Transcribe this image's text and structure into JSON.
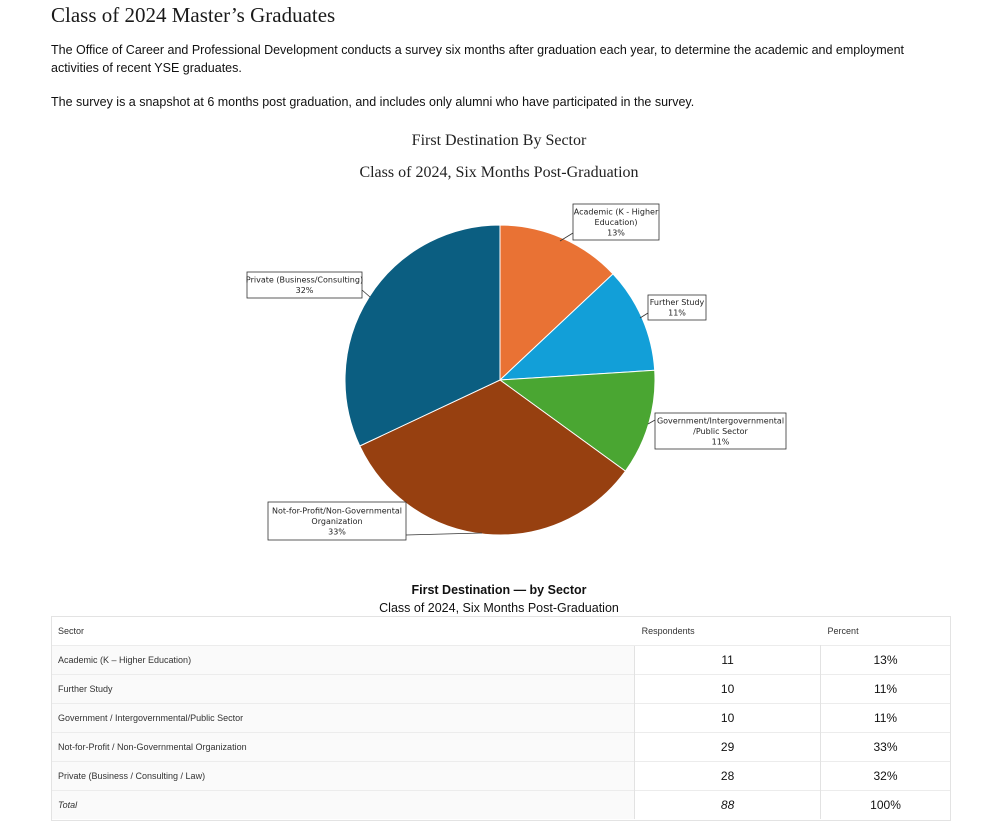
{
  "page": {
    "title": "Class of 2024 Master’s Graduates",
    "intro": "The Office of Career and Professional Development conducts a survey six months after graduation each year, to determine the academic and employment activities of recent YSE graduates.",
    "intro2": "The survey is a snapshot at 6 months post graduation, and includes only alumni who have participated in the survey."
  },
  "chart_data": {
    "type": "pie",
    "title": "First Destination By Sector",
    "subtitle": "Class of 2024, Six Months Post-Graduation",
    "slices": [
      {
        "label": [
          "Academic (K - Higher",
          "Education)"
        ],
        "value": 13,
        "percent_label": "13%",
        "color": "#e97234"
      },
      {
        "label": [
          "Further Study"
        ],
        "value": 11,
        "percent_label": "11%",
        "color": "#129fd8"
      },
      {
        "label": [
          "Government/Intergovernmental",
          "/Public Sector"
        ],
        "value": 11,
        "percent_label": "11%",
        "color": "#4aa632"
      },
      {
        "label": [
          "Not-for-Profit/Non-Governmental",
          "Organization"
        ],
        "value": 33,
        "percent_label": "33%",
        "color": "#974010"
      },
      {
        "label": [
          "Private (Business/Consulting)"
        ],
        "value": 32,
        "percent_label": "32%",
        "color": "#0b5e81"
      }
    ]
  },
  "table": {
    "title": "First Destination — by Sector",
    "subtitle": "Class of 2024, Six Months Post-Graduation",
    "headers": [
      "Sector",
      "Respondents",
      "Percent"
    ],
    "rows": [
      {
        "sector": "Academic (K – Higher Education)",
        "respondents": "11",
        "percent": "13%"
      },
      {
        "sector": "Further Study",
        "respondents": "10",
        "percent": "11%"
      },
      {
        "sector": "Government / Intergovernmental/Public Sector",
        "respondents": "10",
        "percent": "11%"
      },
      {
        "sector": "Not-for-Profit / Non-Governmental Organization",
        "respondents": "29",
        "percent": "33%"
      },
      {
        "sector": "Private (Business / Consulting / Law)",
        "respondents": "28",
        "percent": "32%"
      }
    ],
    "total": {
      "sector": "Total",
      "respondents": "88",
      "percent": "100%"
    }
  }
}
